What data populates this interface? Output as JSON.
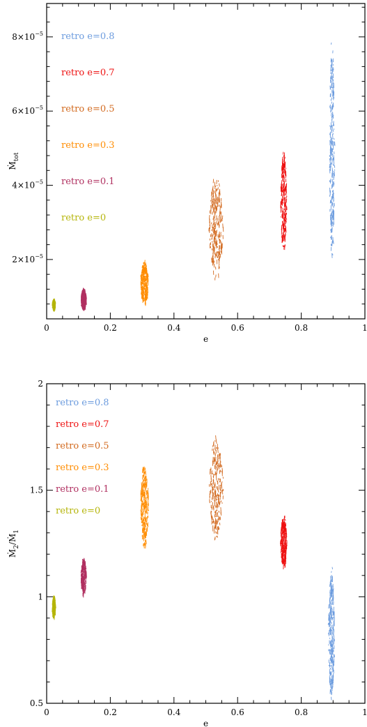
{
  "chart_data": [
    {
      "type": "scatter",
      "xlabel": "e",
      "ylabel": "Ṁ",
      "ylabel_sub": "tot",
      "xlim": [
        0,
        1
      ],
      "ylim": [
        4e-06,
        8.9e-05
      ],
      "x_ticks": [
        0,
        0.2,
        0.4,
        0.6,
        0.8,
        1
      ],
      "x_tick_labels": [
        "0",
        "0.2",
        "0.4",
        "0.6",
        "0.8",
        "1"
      ],
      "y_ticks": [
        2e-05,
        4e-05,
        6e-05,
        8e-05
      ],
      "y_tick_labels": [
        {
          "mant": "2×10",
          "exp": "−5"
        },
        {
          "mant": "4×10",
          "exp": "−5"
        },
        {
          "mant": "6×10",
          "exp": "−5"
        },
        {
          "mant": "8×10",
          "exp": "−5"
        }
      ],
      "legend": {
        "position": "top-left"
      },
      "series": [
        {
          "name": "retro e=0.8",
          "color": "#6b9bde",
          "x_range": [
            0.888,
            0.905
          ],
          "y_range": [
            1.8e-05,
            8e-05
          ]
        },
        {
          "name": "retro e=0.7",
          "color": "#ee1111",
          "x_range": [
            0.735,
            0.755
          ],
          "y_range": [
            2.2e-05,
            5e-05
          ]
        },
        {
          "name": "retro e=0.5",
          "color": "#d2691e",
          "x_range": [
            0.51,
            0.555
          ],
          "y_range": [
            1.5e-05,
            4.3e-05
          ]
        },
        {
          "name": "retro e=0.3",
          "color": "#ff8c00",
          "x_range": [
            0.295,
            0.32
          ],
          "y_range": [
            8e-06,
            2e-05
          ]
        },
        {
          "name": "retro e=0.1",
          "color": "#b03060",
          "x_range": [
            0.108,
            0.125
          ],
          "y_range": [
            7e-06,
            1.25e-05
          ]
        },
        {
          "name": "retro e=0",
          "color": "#b5b50a",
          "x_range": [
            0.018,
            0.028
          ],
          "y_range": [
            7e-06,
            9.5e-06
          ]
        }
      ]
    },
    {
      "type": "scatter",
      "xlabel": "e",
      "ylabel": "Ṁ",
      "ylabel_sub": "2",
      "ylabel_den": "Ṁ",
      "ylabel_den_sub": "1",
      "xlim": [
        0,
        1
      ],
      "ylim": [
        0.5,
        2
      ],
      "x_ticks": [
        0,
        0.2,
        0.4,
        0.6,
        0.8,
        1
      ],
      "x_tick_labels": [
        "0",
        "0.2",
        "0.4",
        "0.6",
        "0.8",
        "1"
      ],
      "y_ticks": [
        0.5,
        1,
        1.5,
        2
      ],
      "y_tick_labels": [
        "0.5",
        "1",
        "1.5",
        "2"
      ],
      "legend": {
        "position": "top-left"
      },
      "series": [
        {
          "name": "retro e=0.8",
          "color": "#6b9bde",
          "x_range": [
            0.885,
            0.905
          ],
          "y_range": [
            0.52,
            1.15
          ]
        },
        {
          "name": "retro e=0.7",
          "color": "#ee1111",
          "x_range": [
            0.735,
            0.755
          ],
          "y_range": [
            1.14,
            1.39
          ]
        },
        {
          "name": "retro e=0.5",
          "color": "#d2691e",
          "x_range": [
            0.51,
            0.555
          ],
          "y_range": [
            1.27,
            1.76
          ]
        },
        {
          "name": "retro e=0.3",
          "color": "#ff8c00",
          "x_range": [
            0.295,
            0.32
          ],
          "y_range": [
            1.23,
            1.64
          ]
        },
        {
          "name": "retro e=0.1",
          "color": "#b03060",
          "x_range": [
            0.108,
            0.125
          ],
          "y_range": [
            1.01,
            1.19
          ]
        },
        {
          "name": "retro e=0",
          "color": "#b5b50a",
          "x_range": [
            0.018,
            0.028
          ],
          "y_range": [
            0.91,
            1.01
          ]
        }
      ]
    }
  ]
}
